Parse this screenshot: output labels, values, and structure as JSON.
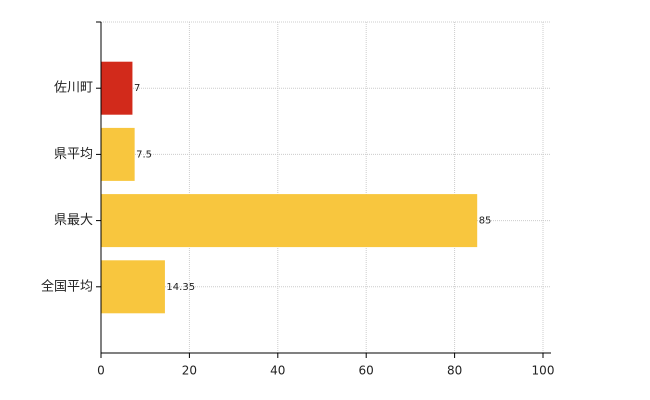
{
  "chart_data": {
    "type": "hbar",
    "categories": [
      "佐川町",
      "県平均",
      "県最大",
      "全国平均"
    ],
    "values": [
      7,
      7.5,
      85,
      14.35
    ],
    "colors": [
      "#d22a1b",
      "#f8c63e",
      "#f8c63e",
      "#f8c63e"
    ],
    "xlim": [
      0,
      100
    ],
    "xticks": [
      0,
      20,
      40,
      60,
      80,
      100
    ],
    "grid": true
  }
}
